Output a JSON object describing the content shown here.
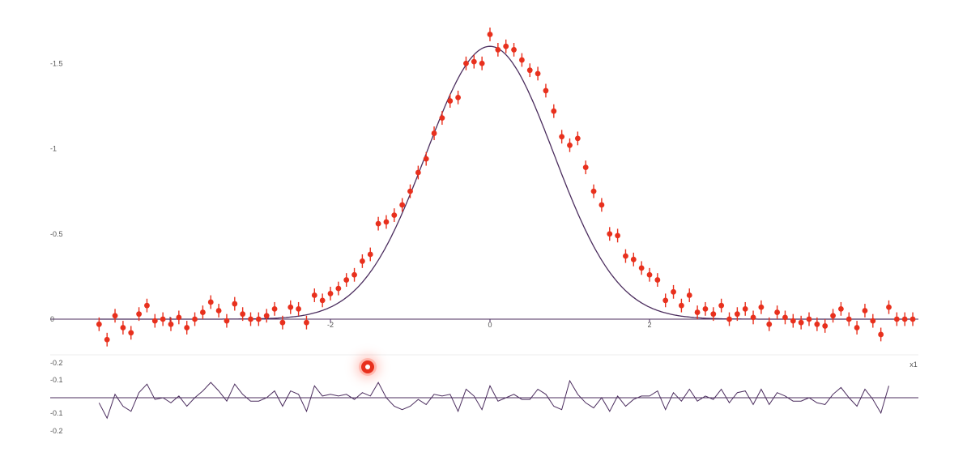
{
  "chart_data": [
    {
      "type": "scatter",
      "title": "",
      "xlabel": "x1",
      "ylabel": "",
      "xlim": [
        -4.9,
        5.3
      ],
      "ylim": [
        -0.2,
        1.75
      ],
      "x_ticks": [
        "-2",
        "0",
        "2"
      ],
      "y_ticks": [
        "-1.5",
        "-1",
        "-0.5",
        "0"
      ],
      "grid": false,
      "colors": {
        "points": "#e8301d",
        "curve": "#4b2d5e",
        "axis": "#4b2d5e"
      },
      "model_curve": {
        "form": "gaussian",
        "amplitude": 1.6,
        "mean": 0.0,
        "sigma": 0.8
      },
      "series": [
        {
          "x": [
            -4.9,
            -4.8,
            -4.7,
            -4.6,
            -4.5,
            -4.4,
            -4.3,
            -4.2,
            -4.1,
            -4.0,
            -3.9,
            -3.8,
            -3.7,
            -3.6,
            -3.5,
            -3.4,
            -3.3,
            -3.2,
            -3.1,
            -3.0,
            -2.9,
            -2.8,
            -2.7,
            -2.6,
            -2.5,
            -2.4,
            -2.3,
            -2.2,
            -2.1,
            -2.0,
            -1.9,
            -1.8,
            -1.7,
            -1.6,
            -1.5,
            -1.4,
            -1.3,
            -1.2,
            -1.1,
            -1.0,
            -0.9,
            -0.8,
            -0.7,
            -0.6,
            -0.5,
            -0.4,
            -0.3,
            -0.2,
            -0.1,
            0.0,
            0.1,
            0.2,
            0.3,
            0.4,
            0.5,
            0.6,
            0.7,
            0.8,
            0.9,
            1.0,
            1.1,
            1.2,
            1.3,
            1.4,
            1.5,
            1.6,
            1.7,
            1.8,
            1.9,
            2.0,
            2.1,
            2.2,
            2.3,
            2.4,
            2.5,
            2.6,
            2.7,
            2.8,
            2.9,
            3.0,
            3.1,
            3.2,
            3.3,
            3.4,
            3.5,
            3.6,
            3.7,
            3.8,
            3.9,
            4.0,
            4.1,
            4.2,
            4.3,
            4.4,
            4.5,
            4.6,
            4.7,
            4.8,
            4.9,
            5.0,
            5.1,
            5.2,
            5.3
          ],
          "y": [
            -0.03,
            -0.12,
            0.02,
            -0.05,
            -0.08,
            0.03,
            0.08,
            -0.01,
            0.0,
            -0.03,
            0.01,
            -0.05,
            0.0,
            0.04,
            0.1,
            0.05,
            -0.01,
            0.09,
            0.03,
            0.0,
            0.0,
            0.02,
            0.06,
            -0.02,
            0.07,
            0.06,
            -0.02,
            0.14,
            0.11,
            0.15,
            0.18,
            0.23,
            0.26,
            0.34,
            0.38,
            0.56,
            0.57,
            0.61,
            0.67,
            0.75,
            0.86,
            0.94,
            1.09,
            1.18,
            1.28,
            1.3,
            1.5,
            1.51,
            1.5,
            1.67,
            1.58,
            1.6,
            1.58,
            1.52,
            1.46,
            1.44,
            1.34,
            1.22,
            1.07,
            1.02,
            1.06,
            0.89,
            0.75,
            0.67,
            0.5,
            0.49,
            0.37,
            0.35,
            0.3,
            0.26,
            0.23,
            0.11,
            0.16,
            0.08,
            0.14,
            0.04,
            0.06,
            0.03,
            0.08,
            0.0,
            0.03,
            0.06,
            0.01,
            0.07,
            -0.03,
            0.04,
            0.01,
            -0.01,
            -0.02,
            0.0,
            -0.03,
            -0.04,
            0.02,
            0.06,
            0.0,
            -0.05,
            0.05,
            -0.01,
            -0.09,
            0.07,
            0.0,
            0.0,
            0.0
          ],
          "err": 0.04
        }
      ]
    },
    {
      "type": "line",
      "title": "",
      "xlabel": "",
      "ylabel": "",
      "ylim": [
        -0.22,
        0.22
      ],
      "y_ticks": [
        "-0.2",
        "-0.1",
        "-0.1",
        "-0.2"
      ],
      "grid": false,
      "colors": {
        "line": "#4b2d5e",
        "zero": "#4b2d5e"
      },
      "series": [
        {
          "y": [
            -0.03,
            -0.12,
            0.02,
            -0.05,
            -0.08,
            0.03,
            0.08,
            -0.01,
            0.0,
            -0.03,
            0.01,
            -0.05,
            0.0,
            0.04,
            0.09,
            0.04,
            -0.02,
            0.08,
            0.02,
            -0.02,
            -0.02,
            0.0,
            0.04,
            -0.05,
            0.04,
            0.02,
            -0.08,
            0.07,
            0.01,
            0.02,
            0.01,
            0.02,
            -0.01,
            0.03,
            0.01,
            0.09,
            0.0,
            -0.05,
            -0.07,
            -0.05,
            -0.01,
            -0.04,
            0.02,
            0.01,
            0.02,
            -0.08,
            0.05,
            0.01,
            -0.07,
            0.07,
            -0.02,
            0.0,
            0.02,
            -0.01,
            -0.01,
            0.05,
            0.02,
            -0.05,
            -0.07,
            0.1,
            0.02,
            -0.03,
            -0.06,
            0.0,
            -0.08,
            0.01,
            -0.05,
            -0.01,
            0.01,
            0.01,
            0.04,
            -0.07,
            0.03,
            -0.02,
            0.05,
            -0.02,
            0.01,
            -0.01,
            0.05,
            -0.03,
            0.03,
            0.04,
            -0.04,
            0.05,
            -0.04,
            0.03,
            0.01,
            -0.02,
            -0.02,
            0.0,
            -0.03,
            -0.04,
            0.02,
            0.06,
            0.0,
            -0.05,
            0.05,
            -0.01,
            -0.09,
            0.07
          ]
        }
      ]
    }
  ],
  "decorations": {
    "cursor": "cursor-highlight"
  }
}
